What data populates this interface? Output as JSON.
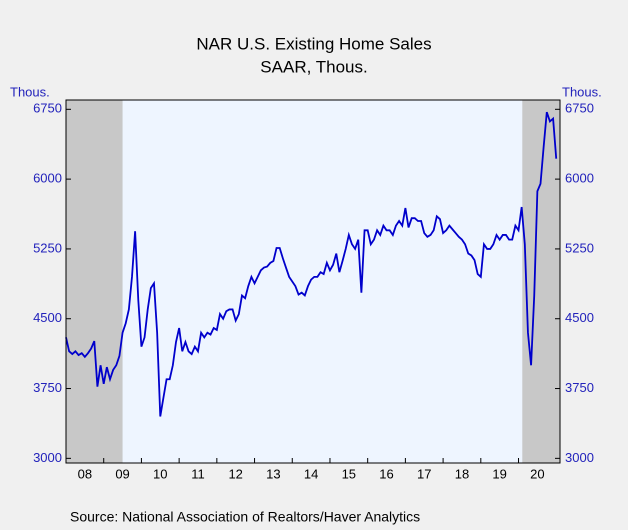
{
  "chart_data": {
    "type": "line",
    "title": "NAR U.S. Existing Home Sales",
    "subtitle": "SAAR, Thous.",
    "ylabel": "Thous.",
    "y2label": "Thous.",
    "source": "Source:  National Association of Realtors/Haver Analytics",
    "xlim": [
      2008,
      2021.1
    ],
    "xticks": [
      {
        "value": 2008.5,
        "label": "08"
      },
      {
        "value": 2009.5,
        "label": "09"
      },
      {
        "value": 2010.5,
        "label": "10"
      },
      {
        "value": 2011.5,
        "label": "11"
      },
      {
        "value": 2012.5,
        "label": "12"
      },
      {
        "value": 2013.5,
        "label": "13"
      },
      {
        "value": 2014.5,
        "label": "14"
      },
      {
        "value": 2015.5,
        "label": "15"
      },
      {
        "value": 2016.5,
        "label": "16"
      },
      {
        "value": 2017.5,
        "label": "17"
      },
      {
        "value": 2018.5,
        "label": "18"
      },
      {
        "value": 2019.5,
        "label": "19"
      },
      {
        "value": 2020.5,
        "label": "20"
      }
    ],
    "ylim": [
      2950,
      6850
    ],
    "yticks": [
      3000,
      3750,
      4500,
      5250,
      6000,
      6750
    ],
    "y2lim": [
      2950,
      6850
    ],
    "y2ticks": [
      3000,
      3750,
      4500,
      5250,
      6000,
      6750
    ],
    "recessions": [
      [
        2008,
        2009.5
      ],
      [
        2020.1,
        2021.1
      ]
    ],
    "x": [
      2008,
      2008.083,
      2008.167,
      2008.25,
      2008.333,
      2008.417,
      2008.5,
      2008.583,
      2008.667,
      2008.75,
      2008.833,
      2008.917,
      2009,
      2009.083,
      2009.167,
      2009.25,
      2009.333,
      2009.417,
      2009.5,
      2009.583,
      2009.667,
      2009.75,
      2009.833,
      2009.917,
      2010,
      2010.083,
      2010.167,
      2010.25,
      2010.333,
      2010.417,
      2010.5,
      2010.583,
      2010.667,
      2010.75,
      2010.833,
      2010.917,
      2011,
      2011.083,
      2011.167,
      2011.25,
      2011.333,
      2011.417,
      2011.5,
      2011.583,
      2011.667,
      2011.75,
      2011.833,
      2011.917,
      2012,
      2012.083,
      2012.167,
      2012.25,
      2012.333,
      2012.417,
      2012.5,
      2012.583,
      2012.667,
      2012.75,
      2012.833,
      2012.917,
      2013,
      2013.083,
      2013.167,
      2013.25,
      2013.333,
      2013.417,
      2013.5,
      2013.583,
      2013.667,
      2013.75,
      2013.833,
      2013.917,
      2014,
      2014.083,
      2014.167,
      2014.25,
      2014.333,
      2014.417,
      2014.5,
      2014.583,
      2014.667,
      2014.75,
      2014.833,
      2014.917,
      2015,
      2015.083,
      2015.167,
      2015.25,
      2015.333,
      2015.417,
      2015.5,
      2015.583,
      2015.667,
      2015.75,
      2015.833,
      2015.917,
      2016,
      2016.083,
      2016.167,
      2016.25,
      2016.333,
      2016.417,
      2016.5,
      2016.583,
      2016.667,
      2016.75,
      2016.833,
      2016.917,
      2017,
      2017.083,
      2017.167,
      2017.25,
      2017.333,
      2017.417,
      2017.5,
      2017.583,
      2017.667,
      2017.75,
      2017.833,
      2017.917,
      2018,
      2018.083,
      2018.167,
      2018.25,
      2018.333,
      2018.417,
      2018.5,
      2018.583,
      2018.667,
      2018.75,
      2018.833,
      2018.917,
      2019,
      2019.083,
      2019.167,
      2019.25,
      2019.333,
      2019.417,
      2019.5,
      2019.583,
      2019.667,
      2019.75,
      2019.833,
      2019.917,
      2020,
      2020.083,
      2020.167,
      2020.25,
      2020.333,
      2020.417,
      2020.5,
      2020.583,
      2020.667,
      2020.75,
      2020.833,
      2020.917,
      2021
    ],
    "series": [
      {
        "name": "Existing Home Sales",
        "color": "#0000cc",
        "values": [
          4300,
          4150,
          4120,
          4150,
          4110,
          4130,
          4090,
          4130,
          4180,
          4260,
          3770,
          4000,
          3800,
          3980,
          3850,
          3950,
          4000,
          4100,
          4350,
          4450,
          4600,
          4950,
          5440,
          4700,
          4200,
          4300,
          4600,
          4830,
          4880,
          4350,
          3450,
          3650,
          3850,
          3850,
          4000,
          4250,
          4400,
          4150,
          4250,
          4150,
          4120,
          4200,
          4150,
          4350,
          4300,
          4350,
          4330,
          4400,
          4380,
          4550,
          4500,
          4580,
          4600,
          4600,
          4480,
          4550,
          4750,
          4720,
          4850,
          4950,
          4880,
          4950,
          5020,
          5050,
          5060,
          5100,
          5120,
          5260,
          5260,
          5150,
          5050,
          4950,
          4900,
          4850,
          4760,
          4780,
          4750,
          4850,
          4920,
          4950,
          4950,
          5000,
          4980,
          5100,
          5020,
          5080,
          5200,
          5000,
          5120,
          5250,
          5400,
          5300,
          5250,
          5350,
          4780,
          5450,
          5450,
          5300,
          5350,
          5450,
          5400,
          5500,
          5450,
          5450,
          5400,
          5500,
          5550,
          5500,
          5690,
          5480,
          5580,
          5580,
          5550,
          5550,
          5420,
          5380,
          5400,
          5450,
          5600,
          5570,
          5420,
          5450,
          5500,
          5460,
          5420,
          5380,
          5350,
          5300,
          5200,
          5180,
          5130,
          4980,
          4950,
          5300,
          5250,
          5250,
          5300,
          5400,
          5350,
          5400,
          5400,
          5350,
          5350,
          5500,
          5450,
          5700,
          5300,
          4350,
          4000,
          4750,
          5870,
          5950,
          6350,
          6720,
          6620,
          6650,
          6220
        ]
      }
    ]
  }
}
